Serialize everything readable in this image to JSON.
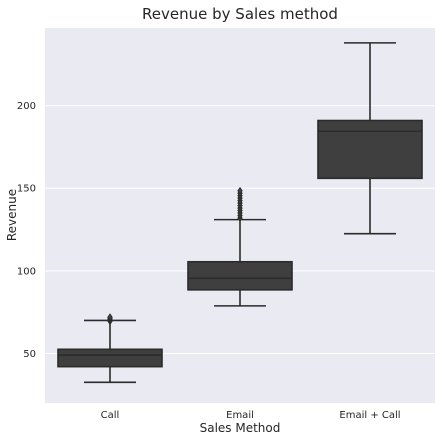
{
  "chart_data": {
    "type": "box",
    "title": "Revenue by Sales method",
    "xlabel": "Sales Method",
    "ylabel": "Revenue",
    "categories": [
      "Call",
      "Email",
      "Email + Call"
    ],
    "ylim": [
      20,
      247
    ],
    "yticks": [
      50,
      100,
      150,
      200
    ],
    "grid": true,
    "boxes": [
      {
        "category": "Call",
        "whislo": 32.5,
        "q1": 42,
        "med": 49,
        "q3": 52.5,
        "whishi": 70,
        "fliers": [
          69.5,
          70.2,
          70.8,
          71.5,
          72.0
        ]
      },
      {
        "category": "Email",
        "whislo": 78.8,
        "q1": 88.5,
        "med": 95.5,
        "q3": 105.5,
        "whishi": 131,
        "fliers": [
          132.0,
          133.5,
          135.0,
          136.5,
          138.0,
          139.5,
          141.0,
          142.5,
          144.0,
          145.5,
          147.0,
          148.5
        ]
      },
      {
        "category": "Email + Call",
        "whislo": 122.5,
        "q1": 156,
        "med": 184.5,
        "q3": 191,
        "whishi": 238,
        "fliers": []
      }
    ]
  }
}
